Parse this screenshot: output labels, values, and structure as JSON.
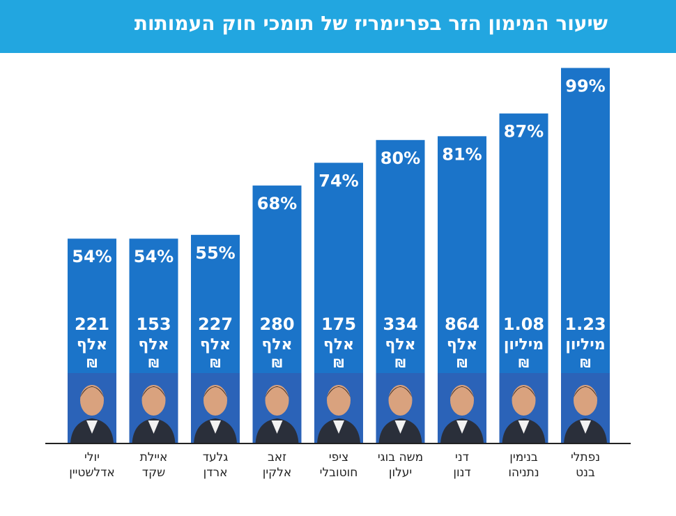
{
  "header": {
    "title": "שיעור המימון הזר בפריימריז של תומכי חוק העמותות"
  },
  "colors": {
    "header_bg": "#22a6e0",
    "bar": "#1b74c9",
    "axis": "#222222"
  },
  "chart_data": {
    "type": "bar",
    "title": "שיעור המימון הזר בפריימריז של תומכי חוק העמותות",
    "currency_symbol": "₪",
    "ylim": [
      0,
      100
    ],
    "grid": false,
    "legend": "none",
    "categories": [
      {
        "first": "יולי",
        "last": "אדלשטיין",
        "percent": 54,
        "amount": "221",
        "unit": "אלף"
      },
      {
        "first": "איילת",
        "last": "שקד",
        "percent": 54,
        "amount": "153",
        "unit": "אלף"
      },
      {
        "first": "גלעד",
        "last": "ארדן",
        "percent": 55,
        "amount": "227",
        "unit": "אלף"
      },
      {
        "first": "זאב",
        "last": "אלקין",
        "percent": 68,
        "amount": "280",
        "unit": "אלף"
      },
      {
        "first": "ציפי",
        "last": "חוטובלי",
        "percent": 74,
        "amount": "175",
        "unit": "אלף"
      },
      {
        "first": "משה בוגי",
        "last": "יעלון",
        "percent": 80,
        "amount": "334",
        "unit": "אלף"
      },
      {
        "first": "דני",
        "last": "דנון",
        "percent": 81,
        "amount": "864",
        "unit": "אלף"
      },
      {
        "first": "בנימין",
        "last": "נתניהו",
        "percent": 87,
        "amount": "1.08",
        "unit": "מיליון"
      },
      {
        "first": "נפתלי",
        "last": "בנט",
        "percent": 99,
        "amount": "1.23",
        "unit": "מיליון"
      }
    ]
  }
}
